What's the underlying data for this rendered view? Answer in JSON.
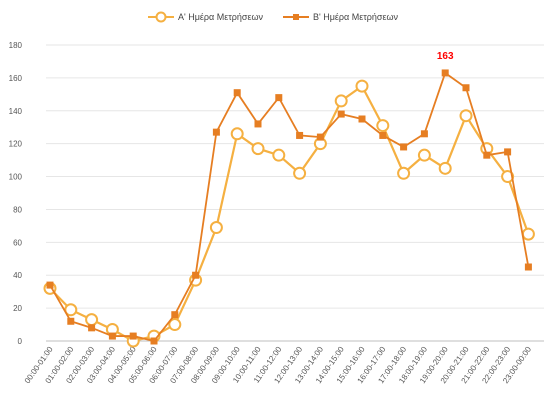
{
  "chart_data": {
    "type": "line",
    "categories": [
      "00:00-01:00",
      "01:00-02:00",
      "02:00-03:00",
      "03:00-04:00",
      "04:00-05:00",
      "05:00-06:00",
      "06:00-07:00",
      "07:00-08:00",
      "08:00-09:00",
      "09:00-10:00",
      "10:00-11:00",
      "11:00-12:00",
      "12:00-13:00",
      "13:00-14:00",
      "14:00-15:00",
      "15:00-16:00",
      "16:00-17:00",
      "17:00-18:00",
      "18:00-19:00",
      "19:00-20:00",
      "20:00-21:00",
      "21:00-22:00",
      "22:00-23:00",
      "23:00-00:00"
    ],
    "series": [
      {
        "name": "Α' Ημέρα Μετρήσεων",
        "color": "#F5B041",
        "marker": "hollow-circle",
        "values": [
          32,
          19,
          13,
          7,
          0,
          3,
          10,
          37,
          69,
          126,
          117,
          113,
          102,
          120,
          146,
          155,
          131,
          102,
          113,
          105,
          137,
          117,
          100,
          65
        ]
      },
      {
        "name": "Β' Ημέρα Μετρήσεων",
        "color": "#E67E22",
        "marker": "square",
        "values": [
          34,
          12,
          8,
          3,
          3,
          0,
          16,
          40,
          127,
          151,
          132,
          148,
          125,
          124,
          138,
          135,
          125,
          118,
          126,
          163,
          154,
          113,
          115,
          45
        ]
      }
    ],
    "annotations": [
      {
        "series": 1,
        "index": 19,
        "text": "163",
        "color": "#FF0000"
      }
    ],
    "ylim": [
      0,
      180
    ],
    "yticks": [
      0,
      20,
      40,
      60,
      80,
      100,
      120,
      140,
      160,
      180
    ],
    "grid": true,
    "legend_position": "top-center",
    "title": "",
    "xlabel": "",
    "ylabel": ""
  }
}
